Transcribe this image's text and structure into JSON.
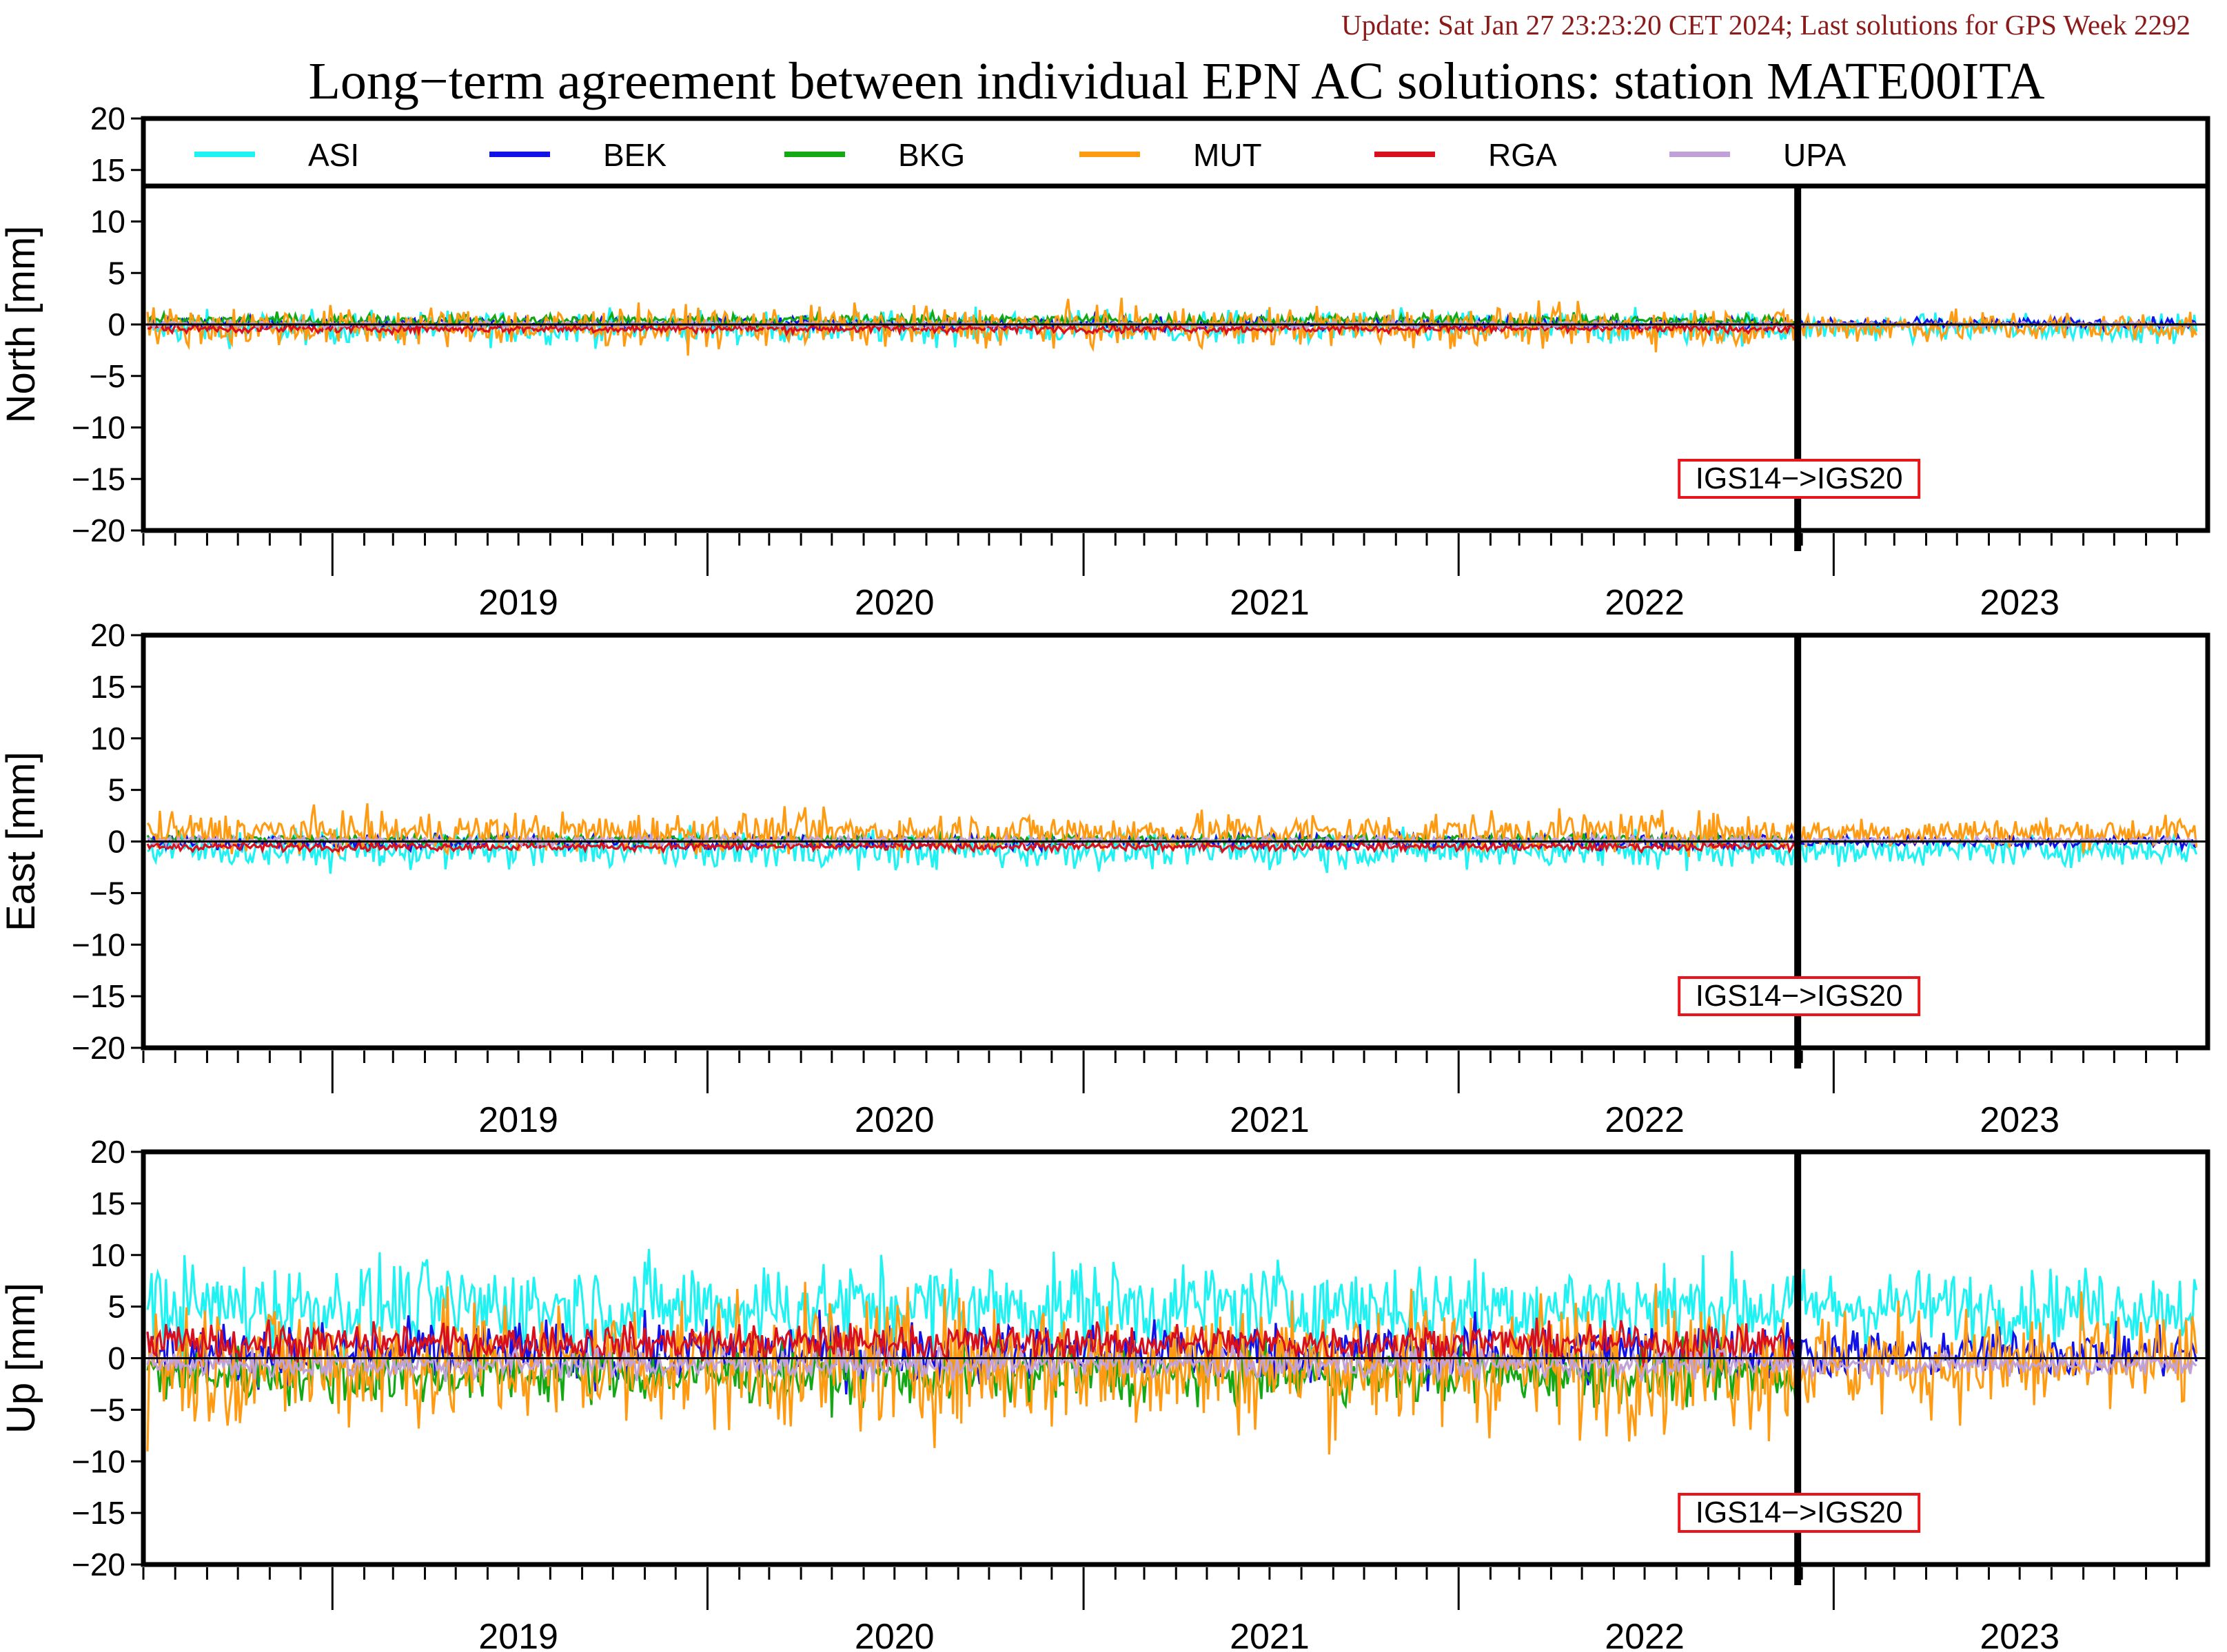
{
  "update_text": "Update: Sat Jan 27 23:23:20 CET 2024; Last solutions for GPS Week 2292",
  "title": "Long−term agreement between individual EPN AC solutions: station MATE00ITA",
  "legend": [
    {
      "name": "ASI",
      "color": "#1ff2f2"
    },
    {
      "name": "BEK",
      "color": "#1212e8"
    },
    {
      "name": "BKG",
      "color": "#15a815"
    },
    {
      "name": "MUT",
      "color": "#ff9b12"
    },
    {
      "name": "RGA",
      "color": "#d8101e"
    },
    {
      "name": "UPA",
      "color": "#c0a2d8"
    }
  ],
  "chart_data": {
    "type": "line",
    "x_axis": {
      "xlim": [
        "2018-07-01",
        "2023-12-31"
      ],
      "year_labels": [
        "2019",
        "2020",
        "2021",
        "2022",
        "2023"
      ]
    },
    "y_axis": {
      "ylim": [
        -20,
        20
      ],
      "ticks": [
        20,
        15,
        10,
        5,
        0,
        -5,
        -10,
        -15,
        -20
      ],
      "tick_labels": [
        "20",
        "15",
        "10",
        "5",
        "0",
        "−5",
        "−10",
        "−15",
        "−20"
      ]
    },
    "annotation": {
      "date": "2022-11-27",
      "text": "IGS14−>IGS20"
    },
    "panels": [
      {
        "ylabel": "North [mm]",
        "series_envelope_mm": {
          "ASI": {
            "mean": -0.3,
            "amp": 1.6
          },
          "BEK": {
            "mean": 0.1,
            "amp": 0.6
          },
          "BKG": {
            "mean": 0.4,
            "amp": 0.6
          },
          "MUT": {
            "mean": -0.2,
            "amp": 1.9
          },
          "RGA": {
            "mean": -0.4,
            "amp": 0.4
          },
          "UPA": {
            "mean": 0.0,
            "amp": 0.3
          }
        }
      },
      {
        "ylabel": "East [mm]",
        "series_envelope_mm": {
          "ASI": {
            "mean": -0.8,
            "amp": 1.8
          },
          "BEK": {
            "mean": 0.0,
            "amp": 0.7
          },
          "BKG": {
            "mean": 0.2,
            "amp": 0.5
          },
          "MUT": {
            "mean": 0.9,
            "amp": 1.9
          },
          "RGA": {
            "mean": -0.5,
            "amp": 0.4
          },
          "UPA": {
            "mean": 0.1,
            "amp": 0.4
          }
        }
      },
      {
        "ylabel": "Up [mm]",
        "series_envelope_mm": {
          "ASI": {
            "mean": 5.0,
            "amp": 4.5
          },
          "BEK": {
            "mean": 0.5,
            "amp": 3.0
          },
          "BKG": {
            "mean": -1.6,
            "amp": 2.8
          },
          "MUT": {
            "mean": -0.5,
            "amp": 6.5
          },
          "RGA": {
            "mean": 1.5,
            "amp": 1.8
          },
          "UPA": {
            "mean": -0.6,
            "amp": 1.4
          }
        }
      }
    ]
  }
}
